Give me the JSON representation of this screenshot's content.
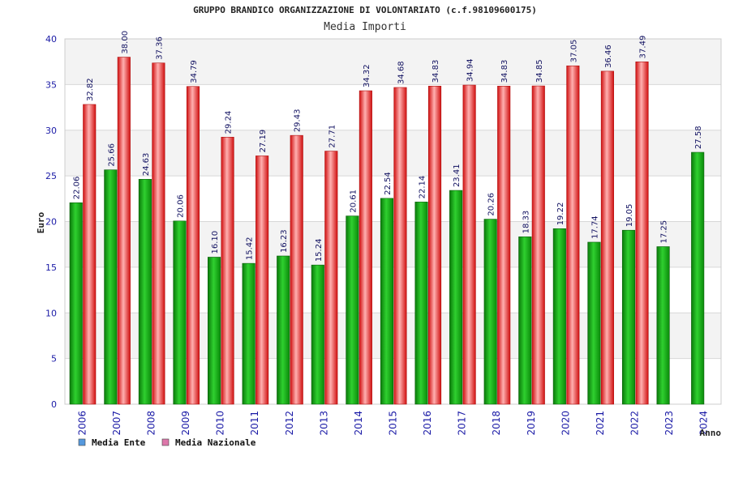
{
  "chart_data": {
    "type": "bar",
    "title": "GRUPPO BRANDICO ORGANIZZAZIONE DI VOLONTARIATO (c.f.98109600175)",
    "subtitle": "Media Importi",
    "xlabel": "Anno",
    "ylabel": "Euro",
    "ylim": [
      0,
      40
    ],
    "yticks": [
      "0",
      "5",
      "10",
      "15",
      "20",
      "25",
      "30",
      "35",
      "40"
    ],
    "categories": [
      "2006",
      "2007",
      "2008",
      "2009",
      "2010",
      "2011",
      "2012",
      "2013",
      "2014",
      "2015",
      "2016",
      "2017",
      "2018",
      "2019",
      "2020",
      "2021",
      "2022",
      "2023",
      "2024"
    ],
    "series": [
      {
        "name": "Media Ente",
        "color": "#22aa22",
        "values": [
          22.06,
          25.66,
          24.63,
          20.06,
          16.1,
          15.42,
          16.23,
          15.24,
          20.61,
          22.54,
          22.14,
          23.41,
          20.26,
          18.33,
          19.22,
          17.74,
          19.05,
          17.25,
          27.58
        ],
        "labels": [
          "22.06",
          "25.66",
          "24.63",
          "20.06",
          "16.10",
          "15.42",
          "16.23",
          "15.24",
          "20.61",
          "22.54",
          "22.14",
          "23.41",
          "20.26",
          "18.33",
          "19.22",
          "17.74",
          "19.05",
          "17.25",
          "27.58"
        ]
      },
      {
        "name": "Media Nazionale",
        "color": "#ee2222",
        "values": [
          32.82,
          38.0,
          37.36,
          34.79,
          29.24,
          27.19,
          29.43,
          27.71,
          34.32,
          34.68,
          34.83,
          34.94,
          34.83,
          34.85,
          37.05,
          36.46,
          37.49,
          null,
          null
        ],
        "labels": [
          "32.82",
          "38.00",
          "37.36",
          "34.79",
          "29.24",
          "27.19",
          "29.43",
          "27.71",
          "34.32",
          "34.68",
          "34.83",
          "34.94",
          "34.83",
          "34.85",
          "37.05",
          "36.46",
          "37.49",
          "",
          ""
        ]
      }
    ],
    "legend": {
      "placement": "bottom-left",
      "items": [
        {
          "label": "Media Ente",
          "color": "#5599dd"
        },
        {
          "label": "Media Nazionale",
          "color": "#dd77aa"
        }
      ]
    },
    "grid": true,
    "band_colors": [
      "#f3f3f3",
      "#ffffff"
    ]
  }
}
